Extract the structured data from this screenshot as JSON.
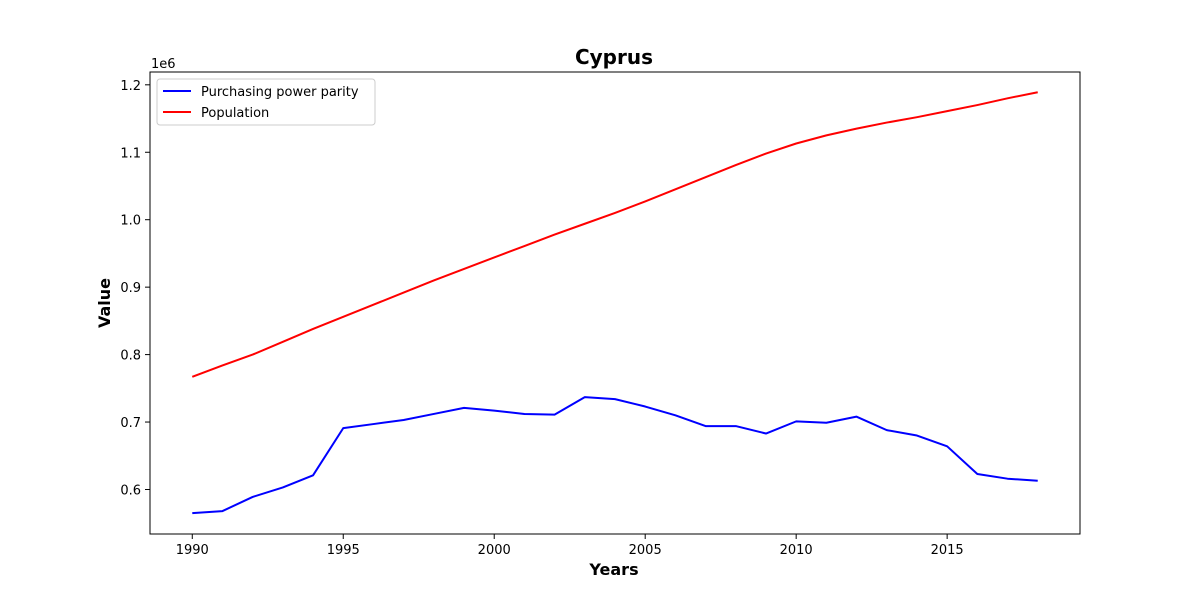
{
  "chart_data": {
    "type": "line",
    "title": "Cyprus",
    "xlabel": "Years",
    "ylabel": "Value",
    "y_offset_label": "1e6",
    "xlim": [
      1988.6,
      2019.4
    ],
    "ylim": [
      0.534,
      1.219
    ],
    "x_ticks": [
      1990,
      1995,
      2000,
      2005,
      2010,
      2015
    ],
    "y_ticks": [
      0.6,
      0.7,
      0.8,
      0.9,
      1.0,
      1.1,
      1.2
    ],
    "y_tick_labels": [
      "0.6",
      "0.7",
      "0.8",
      "0.9",
      "1.0",
      "1.1",
      "1.2"
    ],
    "legend_position": "upper-left",
    "x": [
      1990,
      1991,
      1992,
      1993,
      1994,
      1995,
      1996,
      1997,
      1998,
      1999,
      2000,
      2001,
      2002,
      2003,
      2004,
      2005,
      2006,
      2007,
      2008,
      2009,
      2010,
      2011,
      2012,
      2013,
      2014,
      2015,
      2016,
      2017,
      2018
    ],
    "series": [
      {
        "name": "Purchasing power parity",
        "color": "#0000ff",
        "values": [
          0.565,
          0.568,
          0.589,
          0.603,
          0.621,
          0.691,
          0.697,
          0.703,
          0.712,
          0.721,
          0.717,
          0.712,
          0.711,
          0.737,
          0.734,
          0.723,
          0.71,
          0.694,
          0.694,
          0.683,
          0.701,
          0.699,
          0.708,
          0.688,
          0.68,
          0.664,
          0.623,
          0.616,
          0.613
        ]
      },
      {
        "name": "Population",
        "color": "#ff0000",
        "values": [
          0.767,
          0.784,
          0.8,
          0.819,
          0.838,
          0.856,
          0.874,
          0.892,
          0.91,
          0.927,
          0.944,
          0.961,
          0.978,
          0.994,
          1.01,
          1.027,
          1.045,
          1.063,
          1.081,
          1.098,
          1.113,
          1.125,
          1.135,
          1.144,
          1.152,
          1.161,
          1.17,
          1.18,
          1.189
        ]
      }
    ]
  }
}
